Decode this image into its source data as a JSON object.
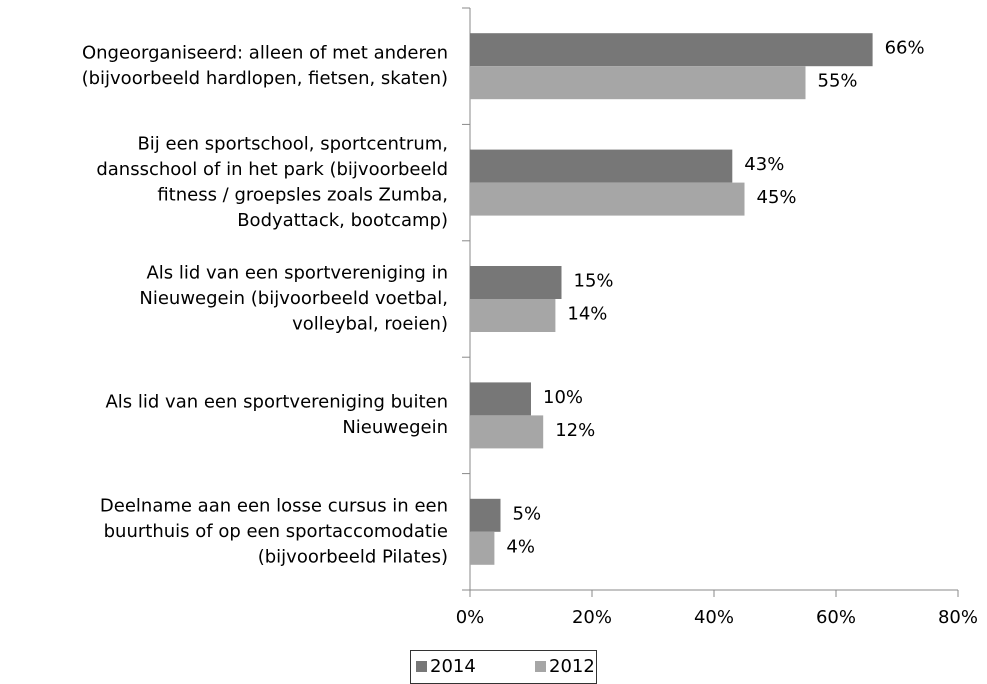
{
  "chart_data": {
    "type": "hbar",
    "categories": [
      [
        "Ongeorganiseerd: alleen of met anderen",
        "(bijvoorbeeld hardlopen, fietsen, skaten)"
      ],
      [
        "Bij een sportschool, sportcentrum,",
        "dansschool of in het park (bijvoorbeeld",
        "fitness / groepsles zoals Zumba,",
        "Bodyattack, bootcamp)"
      ],
      [
        "Als lid van een sportvereniging in",
        "Nieuwegein (bijvoorbeeld voetbal,",
        "volleybal, roeien)"
      ],
      [
        "Als lid van een sportvereniging buiten",
        "Nieuwegein"
      ],
      [
        "Deelname aan een losse cursus in een",
        "buurthuis of op een sportaccomodatie",
        "(bijvoorbeeld Pilates)"
      ]
    ],
    "series": [
      {
        "name": "2014",
        "color": "#777777",
        "values": [
          66,
          43,
          15,
          10,
          5
        ],
        "value_labels": [
          "66%",
          "43%",
          "15%",
          "10%",
          "5%"
        ]
      },
      {
        "name": "2012",
        "color": "#a6a6a6",
        "values": [
          55,
          45,
          14,
          12,
          4
        ],
        "value_labels": [
          "55%",
          "45%",
          "14%",
          "12%",
          "4%"
        ]
      }
    ],
    "xlim": [
      0,
      80
    ],
    "xticks": [
      {
        "value": 0,
        "label": "0%"
      },
      {
        "value": 20,
        "label": "20%"
      },
      {
        "value": 40,
        "label": "40%"
      },
      {
        "value": 60,
        "label": "60%"
      },
      {
        "value": 80,
        "label": "80%"
      }
    ],
    "legend": "bottom"
  }
}
